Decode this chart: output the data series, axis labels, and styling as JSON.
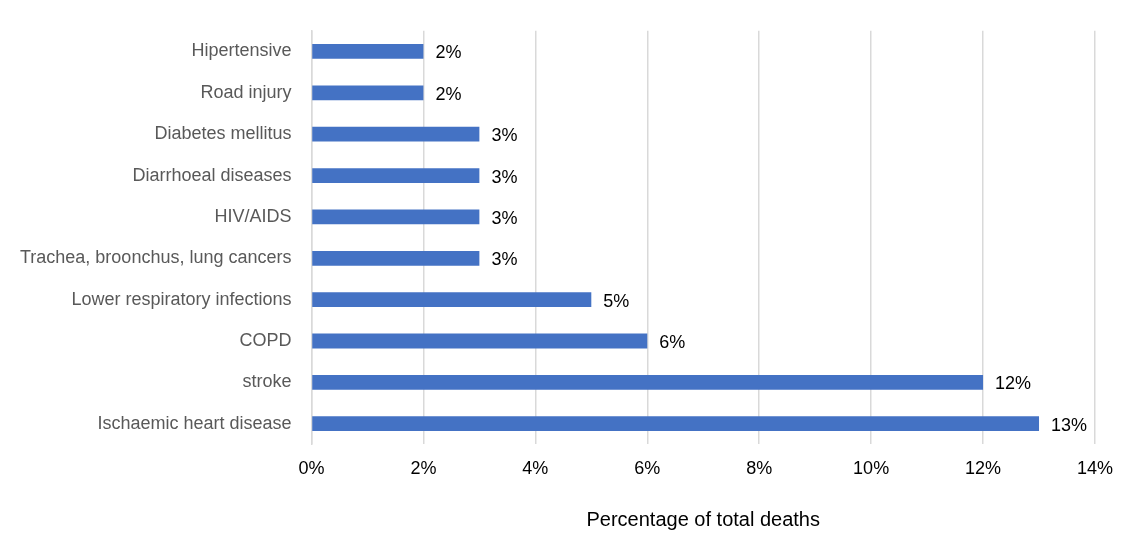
{
  "chart_data": {
    "type": "bar",
    "orientation": "horizontal",
    "xlabel": "Percentage of total deaths",
    "categories": [
      "Hipertensive",
      "Road injury",
      "Diabetes mellitus",
      "Diarrhoeal diseases",
      "HIV/AIDS",
      "Trachea, broonchus, lung cancers",
      "Lower respiratory infections",
      "COPD",
      "stroke",
      "Ischaemic heart disease"
    ],
    "values": [
      2,
      2,
      3,
      3,
      3,
      3,
      5,
      6,
      12,
      13
    ],
    "value_labels": [
      "2%",
      "2%",
      "3%",
      "3%",
      "3%",
      "3%",
      "5%",
      "6%",
      "12%",
      "13%"
    ],
    "color": "#4472c4",
    "xlim": [
      0,
      14
    ],
    "xticks": [
      {
        "value": 0,
        "label": "0%"
      },
      {
        "value": 2,
        "label": "2%"
      },
      {
        "value": 4,
        "label": "4%"
      },
      {
        "value": 6,
        "label": "6%"
      },
      {
        "value": 8,
        "label": "8%"
      },
      {
        "value": 10,
        "label": "10%"
      },
      {
        "value": 12,
        "label": "12%"
      },
      {
        "value": 14,
        "label": "14%"
      }
    ],
    "grid": "x"
  }
}
